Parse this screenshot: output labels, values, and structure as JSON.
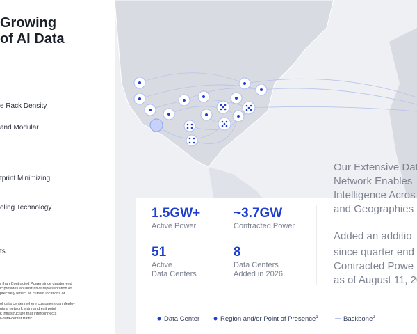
{
  "header": {
    "title_lines": [
      "Growing",
      "of AI Data"
    ]
  },
  "features": [
    "e Rack Density",
    "and Modular",
    "tprint Minimizing",
    "oling Technology",
    "ts"
  ],
  "footnotes": [
    "r than Contracted Power since quarter end",
    "ic provides an illustrative representation of",
    "precisely reflect all current locations or",
    "of data centers where customers can deploy",
    "nts a network entry and exit point",
    "k infrastructure that interconnects",
    "r-data-center traffic"
  ],
  "stats": [
    {
      "value": "1.5GW+",
      "label_lines": [
        "Active Power"
      ]
    },
    {
      "value": "~3.7GW",
      "label_lines": [
        "Contracted Power"
      ]
    },
    {
      "value": "51",
      "label_lines": [
        "Active",
        "Data Centers"
      ]
    },
    {
      "value": "8",
      "label_lines": [
        "Data Centers",
        "Added in 2026"
      ]
    }
  ],
  "summary": {
    "lines": [
      "Our Extensive Dat",
      "Network Enables",
      "Intelligence Acros",
      "and Geographies"
    ],
    "added_lines": [
      "Added an additio",
      "since quarter end",
      "Contracted Powe",
      "as of August 11, 20"
    ]
  },
  "legend": [
    {
      "label": "Data Center"
    },
    {
      "label": "Region and/or Point of Presence",
      "note": "1"
    },
    {
      "label": "Backbone",
      "note": "2"
    }
  ]
}
